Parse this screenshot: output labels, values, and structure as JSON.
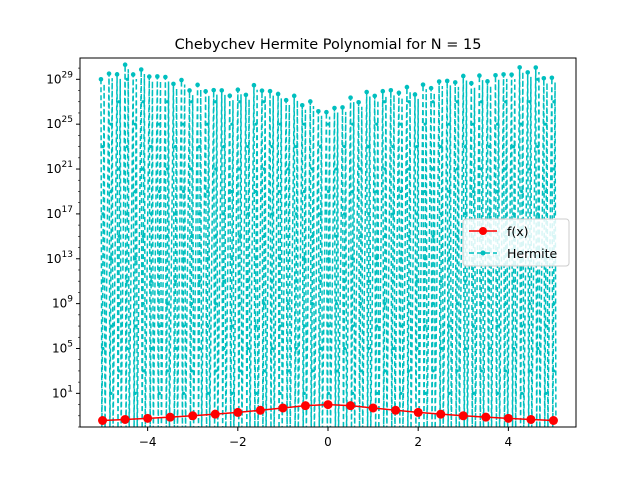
{
  "chart_data": {
    "type": "line",
    "title": "Chebychev Hermite Polynomial for N = 15",
    "xlabel": "",
    "ylabel": "",
    "xlim": [
      -5.5,
      5.5
    ],
    "y_scale": "log",
    "ylim_log10": [
      -2.0,
      30.9
    ],
    "x_ticks": [
      -4,
      -2,
      0,
      2,
      4
    ],
    "x_tick_labels": [
      "−4",
      "−2",
      "0",
      "2",
      "4"
    ],
    "y_ticks_exp": [
      1,
      5,
      9,
      13,
      17,
      21,
      25,
      29
    ],
    "y_tick_labels": [
      {
        "base": "10",
        "exp": "1"
      },
      {
        "base": "10",
        "exp": "5"
      },
      {
        "base": "10",
        "exp": "9"
      },
      {
        "base": "10",
        "exp": "13"
      },
      {
        "base": "10",
        "exp": "17"
      },
      {
        "base": "10",
        "exp": "21"
      },
      {
        "base": "10",
        "exp": "25"
      },
      {
        "base": "10",
        "exp": "29"
      }
    ],
    "legend_position": "center-right",
    "series": [
      {
        "name": "f(x)",
        "color": "#ff0000",
        "marker": "circle",
        "linestyle": "solid",
        "x": [
          -5.0,
          -4.5,
          -4.0,
          -3.5,
          -3.0,
          -2.5,
          -2.0,
          -1.5,
          -1.0,
          -0.5,
          0.0,
          0.5,
          1.0,
          1.5,
          2.0,
          2.5,
          3.0,
          3.5,
          4.0,
          4.5,
          5.0
        ],
        "y": [
          0.038,
          0.047,
          0.059,
          0.075,
          0.1,
          0.14,
          0.2,
          0.31,
          0.5,
          0.8,
          1.0,
          0.8,
          0.5,
          0.31,
          0.2,
          0.14,
          0.1,
          0.075,
          0.059,
          0.047,
          0.038
        ]
      },
      {
        "name": "Hermite",
        "color": "#00bfbf",
        "marker": "circle",
        "linestyle": "dashed",
        "x_range": [
          -5.0,
          5.0
        ],
        "peak_envelope": [
          {
            "x": -5.0,
            "y": 1e+29
          },
          {
            "x": -4.5,
            "y": 1e+30
          },
          {
            "x": -4.0,
            "y": 3e+29
          },
          {
            "x": -3.5,
            "y": 1e+29
          },
          {
            "x": -3.0,
            "y": 2e+28
          },
          {
            "x": -2.5,
            "y": 1e+28
          },
          {
            "x": -2.0,
            "y": 5e+27
          },
          {
            "x": -1.5,
            "y": 2e+28
          },
          {
            "x": -1.0,
            "y": 3e+27
          },
          {
            "x": -0.5,
            "y": 1e+27
          },
          {
            "x": 0.0,
            "y": 1e+26
          },
          {
            "x": 0.5,
            "y": 1e+27
          },
          {
            "x": 1.0,
            "y": 5e+27
          },
          {
            "x": 1.5,
            "y": 1e+28
          },
          {
            "x": 2.0,
            "y": 1e+28
          },
          {
            "x": 2.5,
            "y": 5e+28
          },
          {
            "x": 3.0,
            "y": 1e+29
          },
          {
            "x": 3.5,
            "y": 1e+29
          },
          {
            "x": 4.0,
            "y": 3e+29
          },
          {
            "x": 4.5,
            "y": 1e+30
          },
          {
            "x": 5.0,
            "y": 1e+29
          }
        ]
      }
    ]
  }
}
